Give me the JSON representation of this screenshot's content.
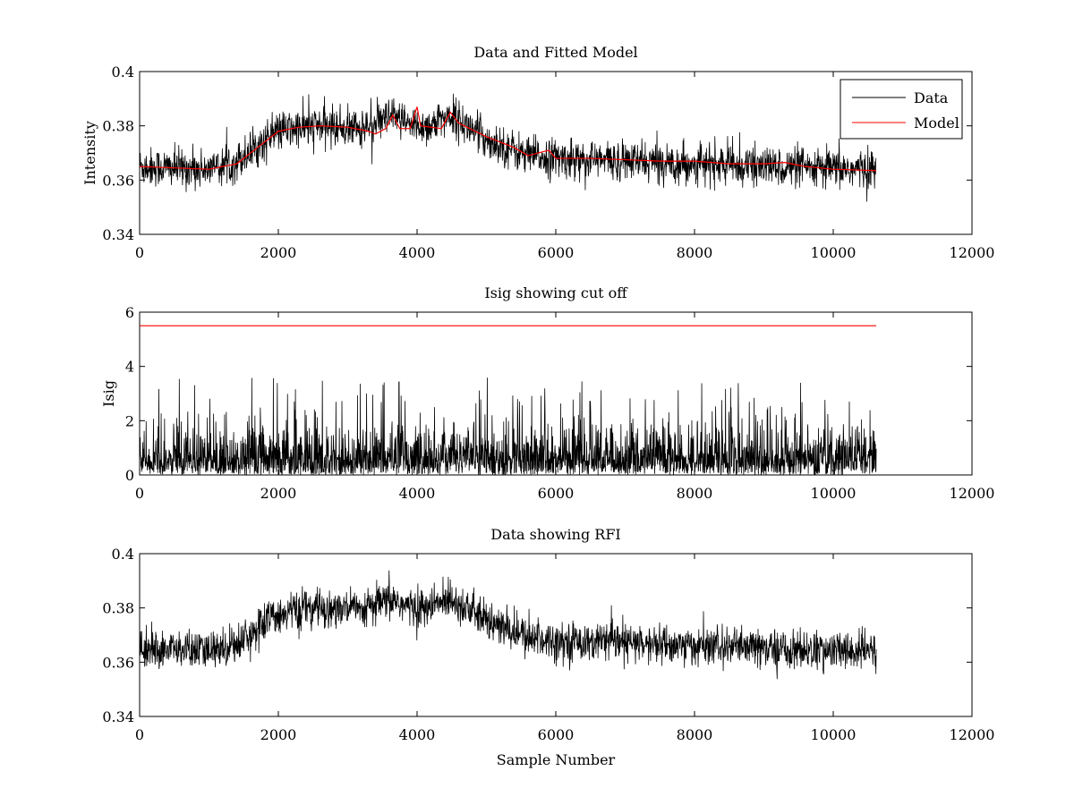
{
  "figure": {
    "background": "#ffffff"
  },
  "chart_data": [
    {
      "type": "line",
      "title": "Data and Fitted Model",
      "xlabel": "",
      "ylabel": "Intensity",
      "xlim": [
        0,
        12000
      ],
      "ylim": [
        0.34,
        0.4
      ],
      "xticks": [
        0,
        2000,
        4000,
        6000,
        8000,
        10000,
        12000
      ],
      "yticks": [
        0.34,
        0.36,
        0.38,
        0.4
      ],
      "grid": false,
      "legend": "top-right",
      "series": [
        {
          "name": "Data",
          "color": "#000000",
          "style": "noisy",
          "x_range": [
            0,
            10620
          ],
          "noise_amplitude": 0.008,
          "baseline": {
            "x": [
              0,
              1000,
              1400,
              2000,
              2600,
              3200,
              3650,
              3900,
              4200,
              4480,
              5000,
              5600,
              6000,
              7000,
              8000,
              9000,
              10000,
              10620
            ],
            "y": [
              0.365,
              0.364,
              0.367,
              0.378,
              0.38,
              0.379,
              0.383,
              0.38,
              0.38,
              0.384,
              0.375,
              0.369,
              0.368,
              0.367,
              0.366,
              0.365,
              0.364,
              0.364
            ]
          }
        },
        {
          "name": "Model",
          "color": "#ff0000",
          "style": "line",
          "x": [
            0,
            500,
            1000,
            1400,
            1700,
            2000,
            2300,
            2600,
            3000,
            3300,
            3400,
            3550,
            3650,
            3750,
            3900,
            4000,
            4050,
            4200,
            4350,
            4480,
            4600,
            5000,
            5400,
            5600,
            5900,
            6000,
            6500,
            7000,
            7500,
            8000,
            8500,
            9000,
            9300,
            9600,
            10000,
            10620
          ],
          "y": [
            0.365,
            0.3645,
            0.364,
            0.366,
            0.372,
            0.378,
            0.3795,
            0.38,
            0.3795,
            0.378,
            0.377,
            0.379,
            0.384,
            0.379,
            0.379,
            0.387,
            0.38,
            0.3795,
            0.379,
            0.385,
            0.381,
            0.376,
            0.372,
            0.369,
            0.371,
            0.368,
            0.368,
            0.3675,
            0.367,
            0.367,
            0.366,
            0.366,
            0.3665,
            0.365,
            0.364,
            0.3635
          ]
        }
      ]
    },
    {
      "type": "line",
      "title": "Isig showing cut off",
      "xlabel": "",
      "ylabel": "Isig",
      "xlim": [
        0,
        12000
      ],
      "ylim": [
        0,
        6
      ],
      "xticks": [
        0,
        2000,
        4000,
        6000,
        8000,
        10000,
        12000
      ],
      "yticks": [
        0,
        2,
        4,
        6
      ],
      "grid": false,
      "series": [
        {
          "color": "#000000",
          "style": "spikes",
          "x_range": [
            0,
            10620
          ],
          "typical_peak": 1.5,
          "max_peak": 3.6
        },
        {
          "color": "#ff0000",
          "style": "line",
          "x": [
            0,
            10620
          ],
          "y": [
            5.5,
            5.5
          ]
        }
      ]
    },
    {
      "type": "line",
      "title": "Data showing RFI",
      "xlabel": "Sample Number",
      "ylabel": "",
      "xlim": [
        0,
        12000
      ],
      "ylim": [
        0.34,
        0.4
      ],
      "xticks": [
        0,
        2000,
        4000,
        6000,
        8000,
        10000,
        12000
      ],
      "yticks": [
        0.34,
        0.36,
        0.38,
        0.4
      ],
      "grid": false,
      "series": [
        {
          "color": "#000000",
          "style": "noisy",
          "x_range": [
            0,
            10620
          ],
          "noise_amplitude": 0.008,
          "baseline": {
            "x": [
              0,
              1000,
              1400,
              2000,
              2600,
              3200,
              3650,
              3900,
              4200,
              4480,
              5000,
              5600,
              6000,
              7000,
              8000,
              9000,
              10000,
              10620
            ],
            "y": [
              0.365,
              0.364,
              0.367,
              0.378,
              0.38,
              0.379,
              0.383,
              0.38,
              0.38,
              0.384,
              0.375,
              0.369,
              0.368,
              0.367,
              0.366,
              0.365,
              0.364,
              0.364
            ]
          }
        }
      ]
    }
  ]
}
